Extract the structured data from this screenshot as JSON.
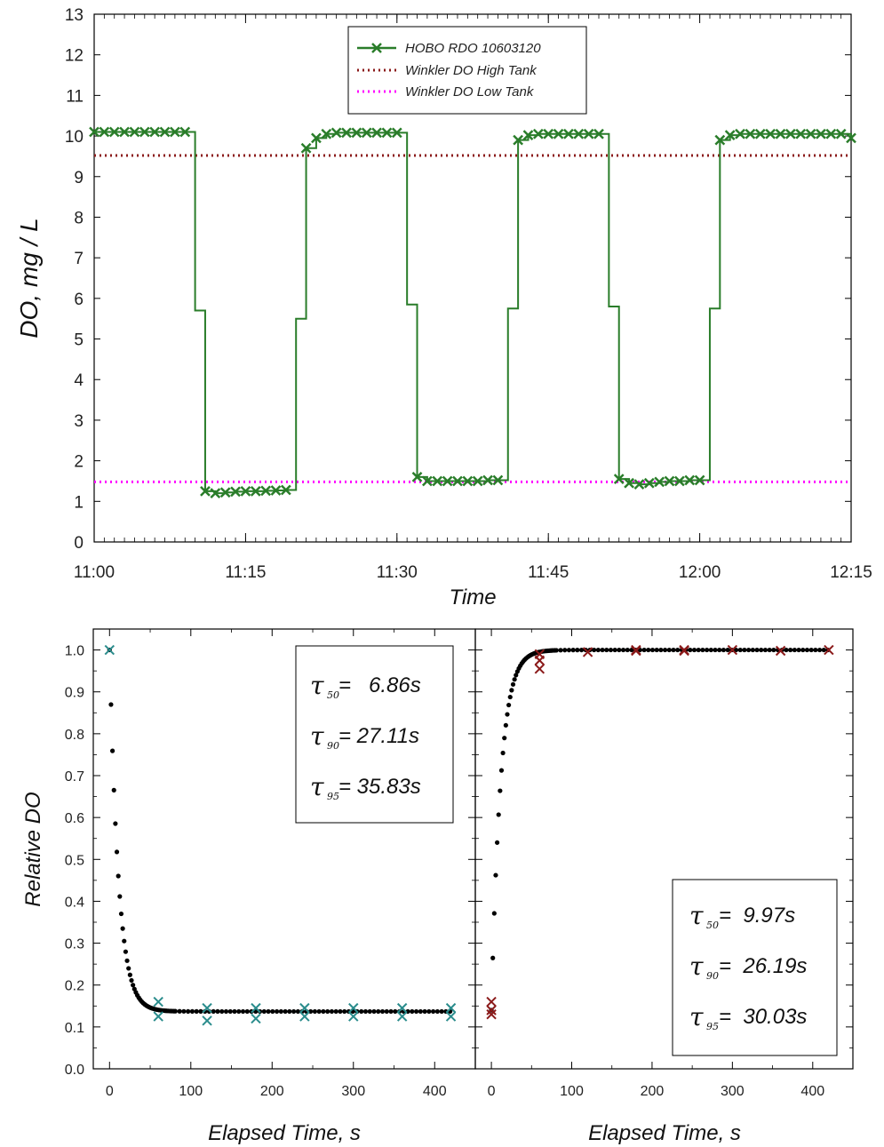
{
  "chart_data": [
    {
      "type": "line",
      "xlabel": "Time",
      "ylabel": "DO, mg / L",
      "xlim": [
        "11:00",
        "12:15"
      ],
      "ylim": [
        0,
        13
      ],
      "x_ticks": [
        "11:00",
        "11:15",
        "11:30",
        "11:45",
        "12:00",
        "12:15"
      ],
      "y_ticks": [
        0,
        1,
        2,
        3,
        4,
        5,
        6,
        7,
        8,
        9,
        10,
        11,
        12,
        13
      ],
      "grid": false,
      "legend_position": "top-center",
      "colors": {
        "hobo": "#2a7d2a",
        "high": "#8b1a1a",
        "low": "#ff00ff"
      },
      "series": [
        {
          "name": "HOBO RDO 10603120",
          "style": "line-with-x-markers",
          "x": [
            "11:00",
            "11:01",
            "11:02",
            "11:03",
            "11:04",
            "11:05",
            "11:06",
            "11:07",
            "11:08",
            "11:09",
            "11:10",
            "11:11",
            "11:12",
            "11:13",
            "11:14",
            "11:15",
            "11:16",
            "11:17",
            "11:18",
            "11:19",
            "11:20",
            "11:21",
            "11:22",
            "11:23",
            "11:24",
            "11:25",
            "11:26",
            "11:27",
            "11:28",
            "11:29",
            "11:30",
            "11:31",
            "11:32",
            "11:33",
            "11:34",
            "11:35",
            "11:36",
            "11:37",
            "11:38",
            "11:39",
            "11:40",
            "11:41",
            "11:42",
            "11:43",
            "11:44",
            "11:45",
            "11:46",
            "11:47",
            "11:48",
            "11:49",
            "11:50",
            "11:51",
            "11:52",
            "11:53",
            "11:54",
            "11:55",
            "11:56",
            "11:57",
            "11:58",
            "11:59",
            "12:00",
            "12:01",
            "12:02",
            "12:03",
            "12:04",
            "12:05",
            "12:06",
            "12:07",
            "12:08",
            "12:09",
            "12:10",
            "12:11",
            "12:12",
            "12:13",
            "12:14",
            "12:15"
          ],
          "values": [
            10.1,
            10.1,
            10.1,
            10.1,
            10.1,
            10.1,
            10.1,
            10.1,
            10.1,
            10.1,
            5.7,
            1.25,
            1.2,
            1.22,
            1.24,
            1.25,
            1.25,
            1.26,
            1.27,
            1.28,
            5.5,
            9.7,
            9.95,
            10.05,
            10.08,
            10.08,
            10.08,
            10.08,
            10.08,
            10.08,
            10.08,
            5.85,
            1.6,
            1.5,
            1.5,
            1.5,
            1.5,
            1.5,
            1.5,
            1.52,
            1.52,
            5.75,
            9.9,
            10.02,
            10.05,
            10.05,
            10.05,
            10.05,
            10.05,
            10.05,
            10.05,
            5.8,
            1.55,
            1.45,
            1.42,
            1.45,
            1.48,
            1.5,
            1.5,
            1.52,
            1.52,
            5.75,
            9.9,
            10.02,
            10.05,
            10.05,
            10.05,
            10.05,
            10.05,
            10.05,
            10.05,
            10.05,
            10.05,
            10.05,
            10.05,
            9.95
          ]
        },
        {
          "name": "Winkler DO High Tank",
          "style": "dotted",
          "x": [
            "11:00",
            "12:15"
          ],
          "values": [
            9.52,
            9.52
          ]
        },
        {
          "name": "Winkler DO Low Tank",
          "style": "dotted",
          "x": [
            "11:00",
            "12:15"
          ],
          "values": [
            1.48,
            1.48
          ]
        }
      ]
    },
    {
      "type": "scatter",
      "xlabel": "Elapsed Time, s",
      "ylabel": "Relative DO",
      "xlim": [
        -20,
        450
      ],
      "ylim": [
        0.0,
        1.05
      ],
      "x_ticks": [
        0,
        100,
        200,
        300,
        400
      ],
      "y_ticks": [
        "0.0",
        "0.1",
        "0.2",
        "0.3",
        "0.4",
        "0.5",
        "0.6",
        "0.7",
        "0.8",
        "0.9",
        "1.0"
      ],
      "grid": false,
      "colors": {
        "points": "#2a8c8c",
        "fit": "#000000"
      },
      "points": {
        "x": [
          0,
          60,
          60,
          120,
          120,
          180,
          180,
          240,
          240,
          300,
          300,
          360,
          360,
          420,
          420
        ],
        "values": [
          1.0,
          0.16,
          0.125,
          0.145,
          0.115,
          0.145,
          0.12,
          0.145,
          0.125,
          0.145,
          0.125,
          0.145,
          0.125,
          0.145,
          0.125
        ]
      },
      "fit": {
        "style": "dotted",
        "plateau": 0.137,
        "tau_value": 11.0
      },
      "annotation": {
        "position": "top-right",
        "lines": [
          {
            "symbol": "τ",
            "sub": "50",
            "text": "=   6.86s"
          },
          {
            "symbol": "τ",
            "sub": "90",
            "text": "= 27.11s"
          },
          {
            "symbol": "τ",
            "sub": "95",
            "text": "= 35.83s"
          }
        ]
      }
    },
    {
      "type": "scatter",
      "xlabel": "Elapsed Time, s",
      "ylabel": "",
      "xlim": [
        -20,
        450
      ],
      "ylim": [
        0.0,
        1.05
      ],
      "x_ticks": [
        0,
        100,
        200,
        300,
        400
      ],
      "grid": false,
      "colors": {
        "points": "#8b1a1a",
        "fit": "#000000"
      },
      "points": {
        "x": [
          0,
          0,
          0,
          60,
          60,
          60,
          120,
          180,
          180,
          240,
          240,
          300,
          360,
          420
        ],
        "values": [
          0.16,
          0.14,
          0.13,
          0.99,
          0.975,
          0.955,
          0.995,
          1.0,
          0.998,
          1.0,
          0.998,
          1.0,
          0.998,
          1.0
        ]
      },
      "fit": {
        "style": "dotted",
        "start": 0.14,
        "plateau": 1.0,
        "tau_value": 11.5
      },
      "annotation": {
        "position": "bottom-right",
        "lines": [
          {
            "symbol": "τ",
            "sub": "50",
            "text": "=  9.97s"
          },
          {
            "symbol": "τ",
            "sub": "90",
            "text": "=  26.19s"
          },
          {
            "symbol": "τ",
            "sub": "95",
            "text": "=  30.03s"
          }
        ]
      }
    }
  ]
}
